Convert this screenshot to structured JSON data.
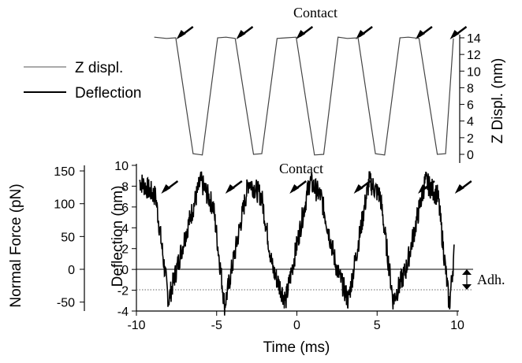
{
  "chart_data": [
    {
      "type": "line",
      "id": "z-displacement",
      "ylabel": "Z Displ. (nm)",
      "ylim": [
        0,
        14
      ],
      "yticks": [
        0,
        2,
        4,
        6,
        8,
        10,
        12,
        14
      ],
      "xlim": [
        -10,
        10
      ],
      "series": [
        {
          "name": "Z displ.",
          "x": [
            -10.0,
            -9.2,
            -8.6,
            -7.4,
            -6.8,
            -5.8,
            -5.2,
            -4.6,
            -3.4,
            -2.8,
            -1.8,
            -1.2,
            -0.5,
            0.7,
            1.3,
            2.3,
            2.9,
            3.6,
            4.8,
            5.4,
            6.4,
            7.0,
            7.7,
            8.9,
            9.5,
            10.0
          ],
          "values": [
            14.0,
            14.0,
            14.0,
            0.0,
            0.0,
            14.0,
            14.0,
            14.0,
            0.0,
            0.0,
            14.0,
            14.0,
            14.0,
            0.0,
            0.0,
            14.0,
            14.0,
            14.0,
            0.0,
            0.0,
            14.0,
            14.0,
            14.0,
            0.0,
            0.0,
            14.0
          ]
        }
      ],
      "annotation": "Contact",
      "contact_arrows_x": [
        -8.8,
        -4.8,
        -0.8,
        3.2,
        7.2,
        9.5
      ]
    },
    {
      "type": "line",
      "id": "deflection",
      "xlabel": "Time (ms)",
      "ylabel": "Deflection (nm)",
      "secondary_ylabel": "Normal Force (pN)",
      "xlim": [
        -10,
        10
      ],
      "ylim": [
        -4,
        10
      ],
      "xticks": [
        -10,
        -5,
        0,
        5,
        10
      ],
      "yticks": [
        -4,
        -2,
        0,
        2,
        4,
        6,
        8,
        10
      ],
      "secondary_yticks": [
        -50,
        0,
        50,
        100,
        150
      ],
      "series": [
        {
          "name": "Deflection",
          "x": [
            -9.8,
            -8.8,
            -8.0,
            -7.0,
            -6.0,
            -5.2,
            -4.5,
            -3.0,
            -2.2,
            -1.5,
            -0.7,
            0.8,
            1.5,
            2.5,
            3.2,
            4.5,
            5.2,
            6.0,
            6.8,
            8.0,
            8.8,
            9.5,
            9.8
          ],
          "values": [
            8.5,
            7.0,
            -3.0,
            3.0,
            8.5,
            6.0,
            -3.5,
            8.5,
            7.0,
            0.0,
            -3.0,
            8.5,
            7.0,
            0.0,
            -3.0,
            8.5,
            7.0,
            -3.0,
            0.0,
            8.5,
            7.0,
            -3.5,
            1.5
          ]
        }
      ],
      "reference_lines": [
        0,
        -1.8
      ],
      "annotations": [
        "Contact",
        "Adh."
      ],
      "contact_arrows_x": [
        -8.8,
        -4.8,
        -0.8,
        3.2,
        7.2,
        9.5
      ]
    }
  ],
  "legend": [
    {
      "label": "Z displ.",
      "style": "thin"
    },
    {
      "label": "Deflection",
      "style": "thick"
    }
  ],
  "colors": {
    "line": "#000000",
    "thin": "#555555",
    "dotted": "#666666"
  }
}
